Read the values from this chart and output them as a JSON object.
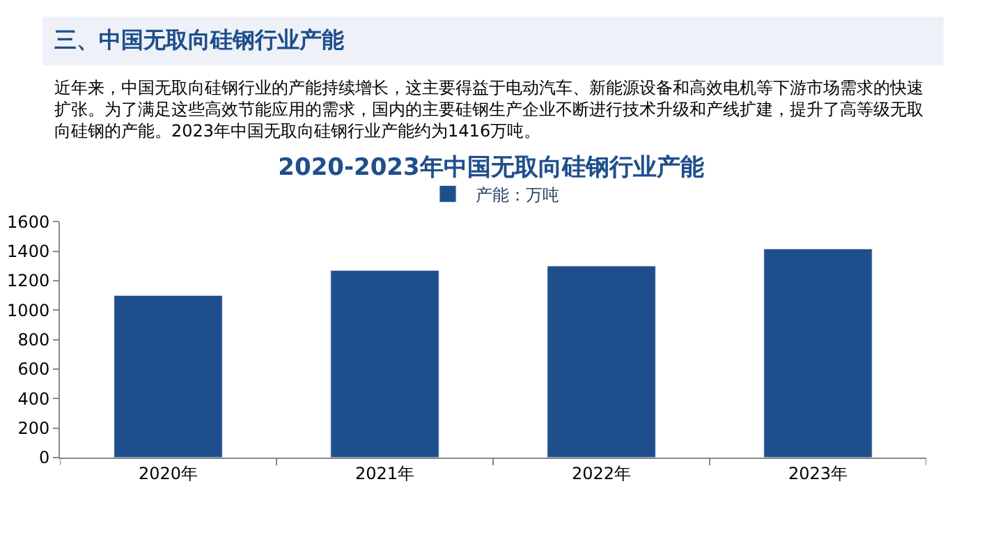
{
  "chart_data": {
    "type": "bar",
    "title": "2020-2023年中国无取向硅钢行业产能",
    "annotations": [
      "三、中国无取向硅钢行业产能",
      "近年来，中国无取向硅钢行业的产能持续增长，这主要得益于电动汽车、新能源设备和高效电机等下游市场需求的快速扩张。为了满足这些高效节能应用的需求，国内的主要硅钢生产企业不断进行技术升级和产线扩建，提升了高等级无取向硅钢的产能。2023年中国无取向硅钢行业产能约为1416万吨。"
    ],
    "categories": [
      "2020年",
      "2021年",
      "2022年",
      "2023年"
    ],
    "series": [
      {
        "name": "产能：万吨",
        "color": "#1f4e8c",
        "values": [
          1100,
          1270,
          1300,
          1416
        ]
      }
    ],
    "ylim": [
      0,
      1600
    ],
    "yticks": [
      0,
      200,
      400,
      600,
      800,
      1000,
      1200,
      1400,
      1600
    ],
    "legend": "top"
  }
}
